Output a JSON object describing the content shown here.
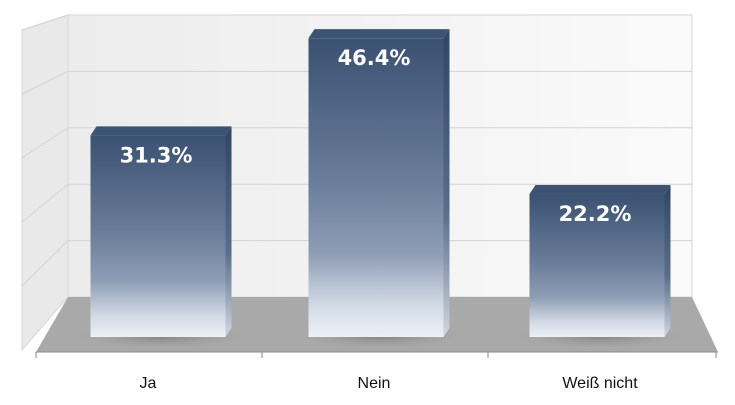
{
  "chart_data": {
    "type": "bar",
    "categories": [
      "Ja",
      "Nein",
      "Weiß nicht"
    ],
    "values": [
      31.3,
      46.4,
      22.2
    ],
    "value_labels": [
      "31.3%",
      "46.4%",
      "22.2%"
    ],
    "ylim": [
      0,
      50
    ],
    "grid": true,
    "style": "3d",
    "colors": {
      "bar_top": "#3d5373",
      "bar_mid": "#6f819d",
      "bar_light": "#c6d0de",
      "floor": "#a8a8a8",
      "wall": "#f5f5f5",
      "grid": "#d3d3d3",
      "label": "#ffffff"
    }
  }
}
